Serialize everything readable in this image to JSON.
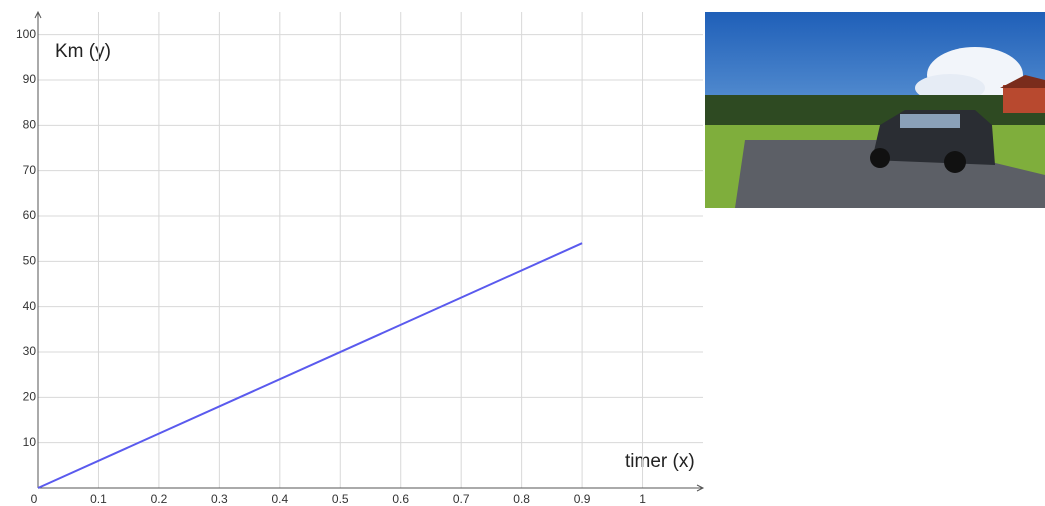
{
  "chart_data": {
    "type": "line",
    "y_label": "Km (y)",
    "x_label": "timer (x)",
    "x": [
      0,
      0.9
    ],
    "values": [
      0,
      54
    ],
    "color": "#5a5aee",
    "xlim": [
      0,
      1.1
    ],
    "ylim": [
      0,
      105
    ],
    "xticks": [
      0,
      0.1,
      0.2,
      0.3,
      0.4,
      0.5,
      0.6,
      0.7,
      0.8,
      0.9,
      1
    ],
    "yticks": [
      10,
      20,
      30,
      40,
      50,
      60,
      70,
      80,
      90,
      100
    ],
    "grid": true
  }
}
